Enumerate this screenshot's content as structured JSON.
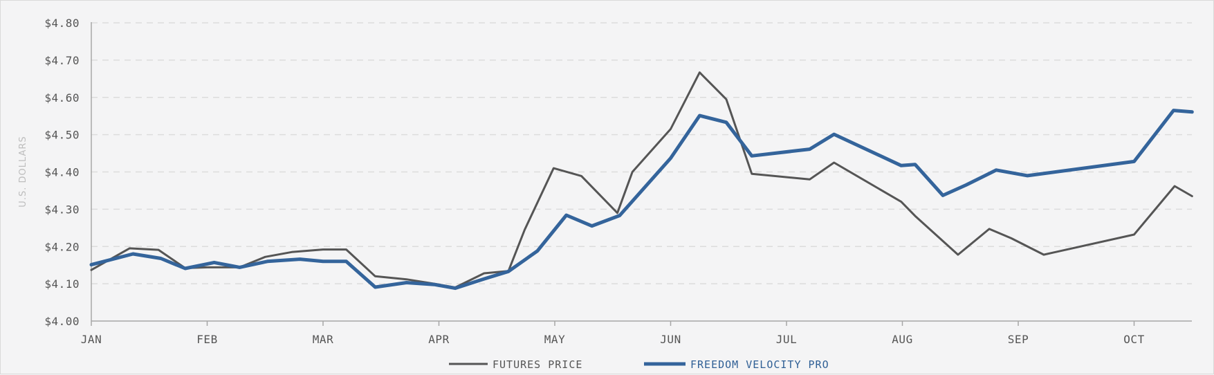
{
  "chart_data": {
    "type": "line",
    "title": "",
    "xlabel": "",
    "ylabel": "U.S. DOLLARS",
    "ylim": [
      4.0,
      4.8
    ],
    "y_ticks": [
      4.0,
      4.1,
      4.2,
      4.3,
      4.4,
      4.5,
      4.6,
      4.7,
      4.8
    ],
    "y_tick_labels": [
      "$4.00",
      "$4.10",
      "$4.20",
      "$4.30",
      "$4.40",
      "$4.50",
      "$4.60",
      "$4.70",
      "$4.80"
    ],
    "months": [
      "JAN",
      "FEB",
      "MAR",
      "APR",
      "MAY",
      "JUN",
      "JUL",
      "AUG",
      "SEP",
      "OCT"
    ],
    "grid": true,
    "grid_style": "dashed-horizontal",
    "legend_position": "bottom-center",
    "series": [
      {
        "name": "FUTURES PRICE",
        "color": "#555555",
        "x": [
          0,
          0.33,
          0.58,
          0.81,
          1.0,
          1.28,
          1.5,
          1.73,
          2.0,
          2.2,
          2.45,
          2.72,
          2.96,
          3.14,
          3.39,
          3.6,
          3.74,
          3.99,
          4.23,
          4.54,
          4.67,
          5.0,
          5.25,
          5.48,
          5.7,
          6.2,
          6.41,
          6.99,
          7.11,
          7.48,
          7.75,
          7.94,
          8.22,
          9.0,
          9.35,
          9.5
        ],
        "values": [
          4.137,
          4.195,
          4.191,
          4.142,
          4.144,
          4.144,
          4.172,
          4.185,
          4.192,
          4.192,
          4.12,
          4.112,
          4.1,
          4.09,
          4.128,
          4.134,
          4.245,
          4.41,
          4.389,
          4.29,
          4.4,
          4.515,
          4.667,
          4.595,
          4.395,
          4.38,
          4.425,
          4.32,
          4.282,
          4.178,
          4.247,
          4.222,
          4.178,
          4.232,
          4.362,
          4.335
        ]
      },
      {
        "name": "FREEDOM VELOCITY PRO",
        "color": "#34649b",
        "x": [
          0,
          0.36,
          0.6,
          0.81,
          1.06,
          1.28,
          1.52,
          1.8,
          2.0,
          2.2,
          2.45,
          2.72,
          2.96,
          3.14,
          3.39,
          3.6,
          3.85,
          4.1,
          4.32,
          4.56,
          5.0,
          5.25,
          5.48,
          5.7,
          6.2,
          6.41,
          6.99,
          7.11,
          7.35,
          7.55,
          7.81,
          8.08,
          9.0,
          9.34,
          9.5
        ],
        "values": [
          4.151,
          4.18,
          4.168,
          4.141,
          4.157,
          4.144,
          4.16,
          4.166,
          4.16,
          4.16,
          4.091,
          4.103,
          4.098,
          4.088,
          4.113,
          4.133,
          4.188,
          4.284,
          4.255,
          4.283,
          4.437,
          4.551,
          4.533,
          4.443,
          4.461,
          4.501,
          4.417,
          4.42,
          4.337,
          4.365,
          4.405,
          4.39,
          4.428,
          4.565,
          4.561
        ]
      }
    ]
  }
}
